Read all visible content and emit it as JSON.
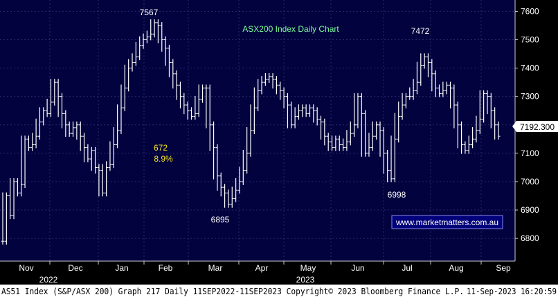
{
  "chart_data": {
    "type": "line",
    "title": "ASX200 Index Daily Chart",
    "ylim": [
      6720,
      7640
    ],
    "yticks": [
      6800,
      6900,
      7000,
      7100,
      7200,
      7300,
      7400,
      7500,
      7600
    ],
    "ytick_labels": [
      "6800",
      "6900",
      "7000",
      "7100",
      "7200",
      "7300",
      "7400",
      "7500",
      "7600"
    ],
    "month_labels": [
      "Nov",
      "Dec",
      "Jan",
      "Feb",
      "Mar",
      "Apr",
      "May",
      "Jun",
      "Jul",
      "Aug",
      "Sep"
    ],
    "year_labels": [
      "2022",
      "2023"
    ],
    "last_value": "7192.300",
    "grid": true,
    "annotations": {
      "high_left": "7567",
      "high_right": "7472",
      "low_mar": "6895",
      "low_jul": "6998",
      "gain_points": "672",
      "gain_pct": "8.9%",
      "website": "www.marketmatters.com.au"
    },
    "series": [
      {
        "points": [
          [
            0,
            6790
          ],
          [
            1,
            6950
          ],
          [
            2,
            6880
          ],
          [
            3,
            7000
          ],
          [
            4,
            6960
          ],
          [
            5,
            6990
          ],
          [
            6,
            7150
          ],
          [
            7,
            7120
          ],
          [
            8,
            7130
          ],
          [
            9,
            7160
          ],
          [
            10,
            7210
          ],
          [
            11,
            7250
          ],
          [
            12,
            7240
          ],
          [
            13,
            7280
          ],
          [
            14,
            7350
          ],
          [
            15,
            7300
          ],
          [
            16,
            7240
          ],
          [
            17,
            7200
          ],
          [
            18,
            7170
          ],
          [
            19,
            7190
          ],
          [
            20,
            7200
          ],
          [
            21,
            7160
          ],
          [
            22,
            7120
          ],
          [
            23,
            7080
          ],
          [
            24,
            7110
          ],
          [
            25,
            7050
          ],
          [
            26,
            7040
          ],
          [
            27,
            6960
          ],
          [
            28,
            7050
          ],
          [
            29,
            7060
          ],
          [
            30,
            7130
          ],
          [
            31,
            7180
          ],
          [
            32,
            7260
          ],
          [
            33,
            7330
          ],
          [
            34,
            7400
          ],
          [
            35,
            7420
          ],
          [
            36,
            7440
          ],
          [
            37,
            7480
          ],
          [
            38,
            7500
          ],
          [
            39,
            7510
          ],
          [
            40,
            7520
          ],
          [
            41,
            7560
          ],
          [
            42,
            7550
          ],
          [
            43,
            7500
          ],
          [
            44,
            7470
          ],
          [
            45,
            7420
          ],
          [
            46,
            7380
          ],
          [
            47,
            7340
          ],
          [
            48,
            7300
          ],
          [
            49,
            7270
          ],
          [
            50,
            7250
          ],
          [
            51,
            7230
          ],
          [
            52,
            7240
          ],
          [
            53,
            7290
          ],
          [
            54,
            7330
          ],
          [
            55,
            7330
          ],
          [
            56,
            7200
          ],
          [
            57,
            7120
          ],
          [
            58,
            7020
          ],
          [
            59,
            6980
          ],
          [
            60,
            6960
          ],
          [
            61,
            6920
          ],
          [
            62,
            6940
          ],
          [
            63,
            6970
          ],
          [
            64,
            7000
          ],
          [
            65,
            7040
          ],
          [
            66,
            7100
          ],
          [
            67,
            7180
          ],
          [
            68,
            7260
          ],
          [
            69,
            7320
          ],
          [
            70,
            7350
          ],
          [
            71,
            7360
          ],
          [
            72,
            7370
          ],
          [
            73,
            7360
          ],
          [
            74,
            7340
          ],
          [
            75,
            7320
          ],
          [
            76,
            7300
          ],
          [
            77,
            7270
          ],
          [
            78,
            7200
          ],
          [
            79,
            7230
          ],
          [
            80,
            7250
          ],
          [
            81,
            7260
          ],
          [
            82,
            7240
          ],
          [
            83,
            7260
          ],
          [
            84,
            7250
          ],
          [
            85,
            7220
          ],
          [
            86,
            7210
          ],
          [
            87,
            7160
          ],
          [
            88,
            7140
          ],
          [
            89,
            7120
          ],
          [
            90,
            7150
          ],
          [
            91,
            7130
          ],
          [
            92,
            7120
          ],
          [
            93,
            7140
          ],
          [
            94,
            7170
          ],
          [
            95,
            7200
          ],
          [
            96,
            7300
          ],
          [
            97,
            7240
          ],
          [
            98,
            7100
          ],
          [
            99,
            7120
          ],
          [
            100,
            7160
          ],
          [
            101,
            7200
          ],
          [
            102,
            7180
          ],
          [
            103,
            7100
          ],
          [
            104,
            7040
          ],
          [
            105,
            7010
          ],
          [
            106,
            7150
          ],
          [
            107,
            7230
          ],
          [
            108,
            7270
          ],
          [
            109,
            7300
          ],
          [
            110,
            7300
          ],
          [
            111,
            7320
          ],
          [
            112,
            7350
          ],
          [
            113,
            7410
          ],
          [
            114,
            7440
          ],
          [
            115,
            7420
          ],
          [
            116,
            7380
          ],
          [
            117,
            7330
          ],
          [
            118,
            7310
          ],
          [
            119,
            7320
          ],
          [
            120,
            7340
          ],
          [
            121,
            7330
          ],
          [
            122,
            7270
          ],
          [
            123,
            7200
          ],
          [
            124,
            7130
          ],
          [
            125,
            7110
          ],
          [
            126,
            7130
          ],
          [
            127,
            7150
          ],
          [
            128,
            7180
          ],
          [
            129,
            7220
          ],
          [
            130,
            7310
          ],
          [
            131,
            7300
          ],
          [
            132,
            7250
          ],
          [
            133,
            7200
          ],
          [
            134,
            7160
          ]
        ]
      }
    ]
  },
  "footer": {
    "left": "AS51 Index (S&P/ASX 200) Graph 217  Daily 11SEP2022-11SEP2023  Copyright© 2023 Bloomberg Finance L.P.",
    "right": "11-Sep-2023 16:20:59"
  },
  "colors": {
    "background": "#000000",
    "plot_bg": "#02023e",
    "line": "#ffffff",
    "title": "#7CFC9A",
    "grid": "#2a2a6e",
    "annotation_yellow": "#f5e21a",
    "footer_bg": "#ffffff",
    "label_box_bg": "#ffffff"
  }
}
